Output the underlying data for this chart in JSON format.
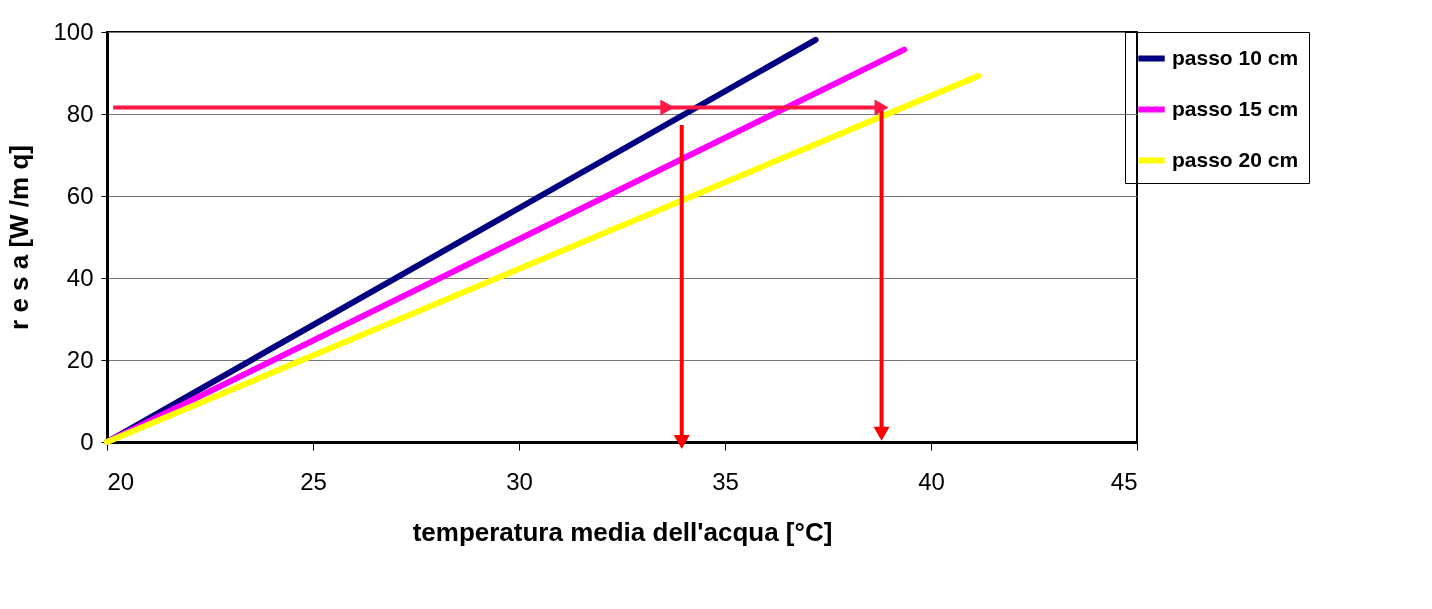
{
  "chart_data": {
    "type": "line",
    "xlabel": "temperatura media dell'acqua [°C]",
    "ylabel": "r e s a  [W /m q]",
    "xlim": [
      20,
      45
    ],
    "xticks": [
      20,
      25,
      30,
      35,
      40,
      45
    ],
    "ylim": [
      0,
      100
    ],
    "yticks": [
      0,
      20,
      40,
      60,
      80,
      100
    ],
    "grid": "y",
    "legend": "right",
    "line_style": "solid",
    "series": [
      {
        "name": "passo 10 cm",
        "color": "#000080",
        "x": [
          20,
          37.2
        ],
        "values": [
          0,
          98.1
        ]
      },
      {
        "name": "passo 15 cm",
        "color": "#ff00ff",
        "x": [
          20,
          39.35
        ],
        "values": [
          0,
          95.7
        ]
      },
      {
        "name": "passo 20 cm",
        "color": "#ffff00",
        "x": [
          20,
          41.15
        ],
        "values": [
          0,
          89.3
        ]
      },
      {
        "color": "#ff1744",
        "x": [
          20.15,
          33.6
        ],
        "values": [
          81.6,
          81.6
        ]
      },
      {
        "color": "#ff1744",
        "x": [
          33.6,
          38.8
        ],
        "values": [
          81.6,
          81.6
        ]
      },
      {
        "color": "#ff0000",
        "x": [
          33.95,
          33.95
        ],
        "values": [
          77.3,
          0
        ]
      },
      {
        "color": "#ff0000",
        "x": [
          38.8,
          38.8
        ],
        "values": [
          81.6,
          2
        ]
      }
    ]
  }
}
